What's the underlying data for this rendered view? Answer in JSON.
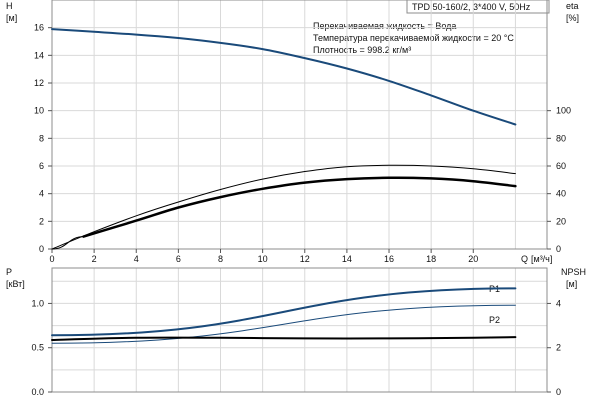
{
  "header": {
    "model": "TPD 50-160/2, 3*400 V, 50Hz",
    "info_lines": [
      "Перекачиваемая жидкость = Вода",
      "Температура перекачиваемой жидкости = 20 °C",
      "Плотность = 998.2 кг/м³"
    ]
  },
  "axes": {
    "left_top": {
      "label": "H",
      "unit": "[м]"
    },
    "right_top": {
      "label": "eta",
      "unit": "[%]"
    },
    "left_bottom": {
      "label": "P",
      "unit": "[кВт]"
    },
    "right_bottom": {
      "label": "NPSH",
      "unit": "[м]"
    },
    "x": {
      "label": "Q",
      "unit": "[м³/ч]"
    }
  },
  "colors": {
    "blue": "#1a4a7a",
    "black": "#000000",
    "grid": "#d9d9d9",
    "frame": "#8c8c8c"
  },
  "chart_data": [
    {
      "type": "line",
      "panel": "top",
      "xlim": [
        0,
        23.5
      ],
      "ylim": [
        0,
        18
      ],
      "y2lim": [
        0,
        180
      ],
      "x_ticks": [
        0,
        2,
        4,
        6,
        8,
        10,
        12,
        14,
        16,
        18,
        20
      ],
      "y_ticks": [
        0,
        2,
        4,
        6,
        8,
        10,
        12,
        14,
        16
      ],
      "y2_ticks": [
        0,
        20,
        40,
        60,
        80,
        100
      ],
      "grid": true,
      "series": [
        {
          "axis": "y",
          "color": "#1a4a7a",
          "width": 2,
          "x": [
            0,
            2,
            4,
            6,
            8,
            10,
            12,
            14,
            16,
            18,
            20,
            22
          ],
          "y": [
            15.9,
            15.7,
            15.5,
            15.25,
            14.9,
            14.45,
            13.8,
            13.05,
            12.15,
            11.1,
            10.0,
            9.0
          ]
        },
        {
          "axis": "y2",
          "color": "#000000",
          "width": 1,
          "x": [
            0,
            2,
            4,
            6,
            8,
            10,
            12,
            14,
            16,
            18,
            20,
            22
          ],
          "y": [
            0,
            12.5,
            24,
            34,
            43,
            50.5,
            56,
            59.5,
            60.5,
            60,
            58,
            54.5
          ]
        },
        {
          "axis": "y2",
          "color": "#000000",
          "width": 2.5,
          "x": [
            1.5,
            4,
            6,
            8,
            10,
            12,
            14,
            16,
            18,
            20,
            22
          ],
          "y": [
            9,
            20.5,
            30,
            37.5,
            43.5,
            48,
            50.5,
            51.5,
            51,
            49,
            45.5
          ]
        },
        {
          "axis": "y2",
          "color": "#000000",
          "width": 1,
          "x": [
            0,
            1.5
          ],
          "y": [
            0,
            9
          ]
        }
      ]
    },
    {
      "type": "line",
      "panel": "bottom",
      "xlim": [
        0,
        23.5
      ],
      "ylim": [
        0,
        1.4
      ],
      "y2lim": [
        0,
        5.6
      ],
      "y_ticks": [
        0.0,
        0.5,
        1.0
      ],
      "y_tick_labels": [
        "0.0",
        "0.5",
        "1.0"
      ],
      "y2_ticks": [
        0,
        2,
        4
      ],
      "grid": true,
      "series": [
        {
          "name": "P1",
          "axis": "y",
          "color": "#1a4a7a",
          "width": 2,
          "x": [
            0,
            22
          ],
          "y": [
            0.64,
            1.17
          ]
        },
        {
          "name": "P2",
          "axis": "y",
          "color": "#1a4a7a",
          "width": 1,
          "x": [
            0,
            22
          ],
          "y": [
            0.55,
            0.98
          ]
        },
        {
          "axis": "y2",
          "color": "#000000",
          "width": 2,
          "x": [
            0,
            4,
            8,
            12,
            16,
            20,
            22
          ],
          "y": [
            2.35,
            2.45,
            2.45,
            2.42,
            2.42,
            2.45,
            2.48
          ]
        }
      ]
    }
  ]
}
